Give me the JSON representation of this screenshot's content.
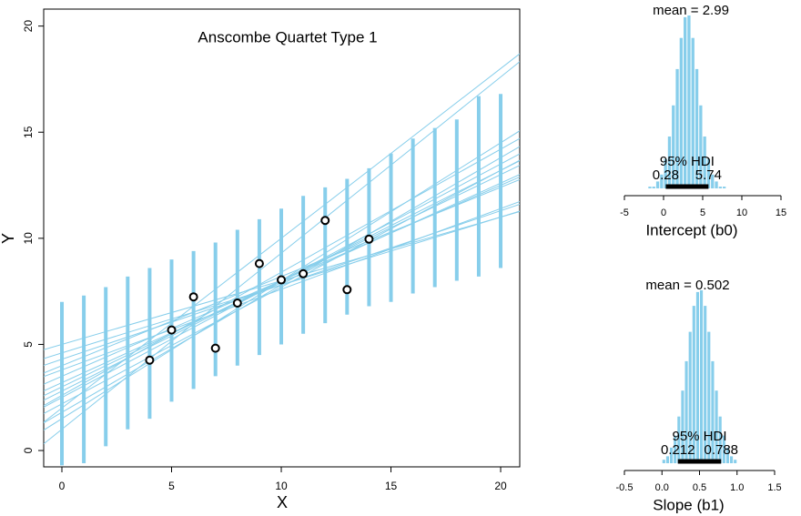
{
  "chart_data": [
    {
      "type": "scatter",
      "title": "Anscombe Quartet Type 1",
      "xlabel": "X",
      "ylabel": "Y",
      "x": [
        10,
        8,
        13,
        9,
        11,
        14,
        6,
        4,
        12,
        7,
        5
      ],
      "y": [
        8.04,
        6.95,
        7.58,
        8.81,
        8.33,
        9.96,
        7.24,
        4.26,
        10.84,
        4.82,
        5.68
      ],
      "color": "#87ceeb",
      "lines": [
        [
          5.0,
          0.3
        ],
        [
          4.6,
          0.32
        ],
        [
          4.3,
          0.35
        ],
        [
          2.0,
          0.8
        ],
        [
          1.0,
          0.83
        ],
        [
          2.5,
          0.55
        ],
        [
          3.0,
          0.5
        ],
        [
          2.2,
          0.55
        ],
        [
          3.5,
          0.45
        ],
        [
          2.8,
          0.52
        ],
        [
          1.5,
          0.65
        ],
        [
          4.0,
          0.42
        ],
        [
          3.2,
          0.47
        ],
        [
          2.6,
          0.58
        ],
        [
          1.8,
          0.6
        ],
        [
          3.8,
          0.38
        ]
      ],
      "interval_x": [
        0,
        1,
        2,
        3,
        4,
        5,
        6,
        7,
        8,
        9,
        10,
        11,
        12,
        13,
        14,
        15,
        16,
        17,
        18,
        19,
        20
      ],
      "interval_low": [
        -0.7,
        -0.6,
        0.2,
        1.0,
        1.5,
        2.3,
        2.9,
        3.5,
        4.0,
        4.5,
        5.0,
        5.5,
        6.0,
        6.4,
        6.8,
        7.0,
        7.4,
        7.7,
        8.0,
        8.2,
        8.6
      ],
      "interval_high": [
        7.0,
        7.3,
        7.7,
        8.2,
        8.6,
        9.0,
        9.4,
        9.8,
        10.4,
        10.9,
        11.4,
        12.0,
        12.4,
        12.8,
        13.3,
        14.0,
        14.7,
        15.2,
        15.6,
        16.7,
        16.8
      ],
      "xlim": [
        -0.83,
        20.87
      ],
      "ylim": [
        -0.77,
        20.8
      ],
      "xticks": [
        0,
        5,
        10,
        15,
        20
      ],
      "yticks": [
        0,
        5,
        10,
        15,
        20
      ]
    },
    {
      "type": "histogram",
      "xlabel": "Intercept (b0)",
      "mean_text": "mean = 2.99",
      "hdi_label": "95% HDI",
      "hdi": [
        0.28,
        5.74
      ],
      "color": "#87ceeb",
      "bins": [
        -2,
        -1.5,
        -1,
        -0.5,
        0,
        0.5,
        1,
        1.5,
        2,
        2.5,
        3,
        3.5,
        4,
        4.5,
        5,
        5.5,
        6,
        6.5,
        7,
        7.5,
        8
      ],
      "counts": [
        1,
        1,
        4,
        8,
        17,
        30,
        48,
        69,
        87,
        99,
        100,
        87,
        69,
        48,
        30,
        17,
        8,
        4,
        1,
        1
      ],
      "xlim": [
        -5,
        15
      ],
      "xticks": [
        -5,
        0,
        5,
        10,
        15
      ]
    },
    {
      "type": "histogram",
      "xlabel": "Slope (b1)",
      "mean_text": "mean = 0.502",
      "hdi_label": "95% HDI",
      "hdi": [
        0.212,
        0.788
      ],
      "color": "#87ceeb",
      "bins": [
        0,
        0.05,
        0.1,
        0.15,
        0.2,
        0.25,
        0.3,
        0.35,
        0.4,
        0.45,
        0.5,
        0.55,
        0.6,
        0.65,
        0.7,
        0.75,
        0.8,
        0.85,
        0.9,
        0.95,
        1
      ],
      "counts": [
        2,
        4,
        9,
        16,
        27,
        42,
        59,
        76,
        91,
        99,
        100,
        91,
        76,
        59,
        42,
        27,
        16,
        9,
        4,
        2
      ],
      "xlim": [
        -0.5,
        1.5
      ],
      "xticks": [
        -0.5,
        {
          "value": 0,
          "label": "0.0"
        },
        0.5,
        {
          "value": 1,
          "label": "1.0"
        },
        1.5
      ]
    }
  ]
}
